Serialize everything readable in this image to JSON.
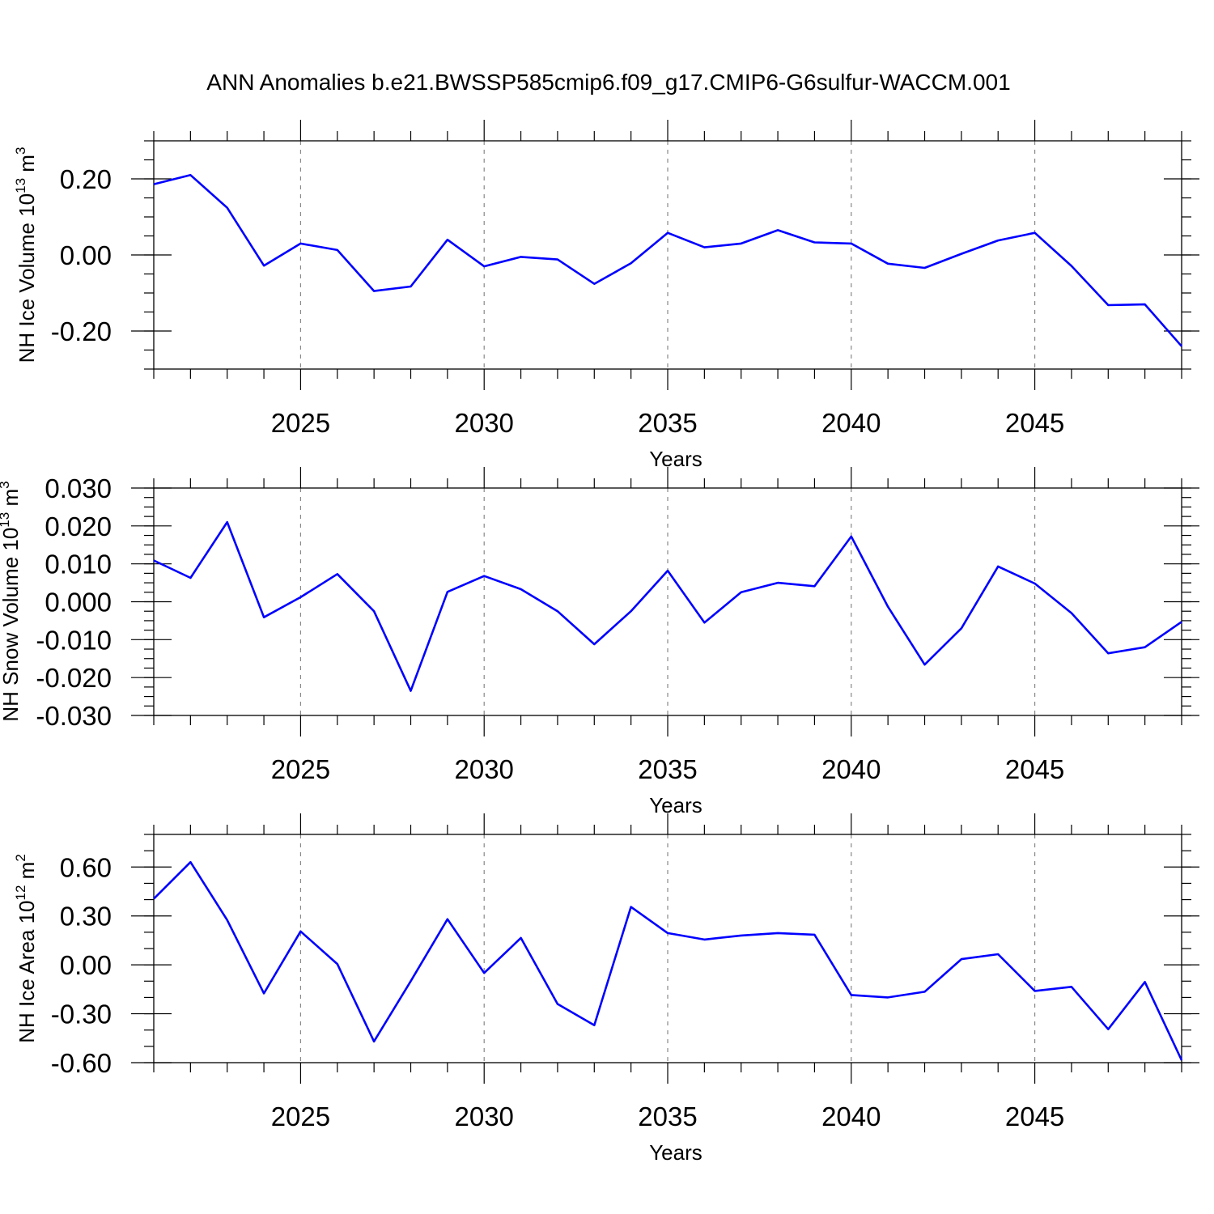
{
  "title": "ANN Anomalies b.e21.BWSSP585cmip6.f09_g17.CMIP6-G6sulfur-WACCM.001",
  "colors": {
    "line": "#0000ff",
    "grid": "#888888",
    "axes": "#000000"
  },
  "chart_data": [
    {
      "type": "line",
      "ylabel": {
        "base": "NH Ice Volume 10",
        "sup": "13",
        "unit": " m",
        "unit_sup": "3"
      },
      "xlabel": "Years",
      "xlim": [
        2021,
        2049
      ],
      "ylim": [
        -0.3,
        0.3
      ],
      "yticks": [
        -0.2,
        0.0,
        0.2
      ],
      "ytick_labels": [
        "-0.20",
        "0.00",
        "0.20"
      ],
      "yminor_step": 0.05,
      "xticks": [
        2025,
        2030,
        2035,
        2040,
        2045
      ],
      "xtick_labels": [
        "2025",
        "2030",
        "2035",
        "2040",
        "2045"
      ],
      "grid": "vertical dashed at major x ticks",
      "x": [
        2021,
        2022,
        2023,
        2024,
        2025,
        2026,
        2027,
        2028,
        2029,
        2030,
        2031,
        2032,
        2033,
        2034,
        2035,
        2036,
        2037,
        2038,
        2039,
        2040,
        2041,
        2042,
        2043,
        2044,
        2045,
        2046,
        2047,
        2048,
        2049
      ],
      "values": [
        0.186,
        0.21,
        0.124,
        -0.028,
        0.03,
        0.013,
        -0.095,
        -0.083,
        0.04,
        -0.03,
        -0.005,
        -0.012,
        -0.076,
        -0.022,
        0.058,
        0.02,
        0.03,
        0.065,
        0.033,
        0.03,
        -0.023,
        -0.034,
        0.003,
        0.038,
        0.058,
        -0.029,
        -0.132,
        -0.13,
        -0.24
      ]
    },
    {
      "type": "line",
      "ylabel": {
        "base": "NH Snow Volume 10",
        "sup": "13",
        "unit": " m",
        "unit_sup": "3"
      },
      "xlabel": "Years",
      "xlim": [
        2021,
        2049
      ],
      "ylim": [
        -0.03,
        0.03
      ],
      "yticks": [
        -0.03,
        -0.02,
        -0.01,
        0.0,
        0.01,
        0.02,
        0.03
      ],
      "ytick_labels": [
        "-0.030",
        "-0.020",
        "-0.010",
        "0.000",
        "0.010",
        "0.020",
        "0.030"
      ],
      "yminor_step": 0.0025,
      "xticks": [
        2025,
        2030,
        2035,
        2040,
        2045
      ],
      "xtick_labels": [
        "2025",
        "2030",
        "2035",
        "2040",
        "2045"
      ],
      "grid": "vertical dashed at major x ticks",
      "x": [
        2021,
        2022,
        2023,
        2024,
        2025,
        2026,
        2027,
        2028,
        2029,
        2030,
        2031,
        2032,
        2033,
        2034,
        2035,
        2036,
        2037,
        2038,
        2039,
        2040,
        2041,
        2042,
        2043,
        2044,
        2045,
        2046,
        2047,
        2048,
        2049
      ],
      "values": [
        0.0109,
        0.0063,
        0.021,
        -0.0041,
        0.0012,
        0.0073,
        -0.0025,
        -0.0235,
        0.0026,
        0.0068,
        0.0033,
        -0.0025,
        -0.0112,
        -0.0025,
        0.0082,
        -0.0055,
        0.0025,
        0.005,
        0.0041,
        0.0172,
        -0.0013,
        -0.0166,
        -0.007,
        0.0093,
        0.0048,
        -0.003,
        -0.0136,
        -0.012,
        -0.0053
      ]
    },
    {
      "type": "line",
      "ylabel": {
        "base": "NH Ice Area 10",
        "sup": "12",
        "unit": " m",
        "unit_sup": "2"
      },
      "xlabel": "Years",
      "xlim": [
        2021,
        2049
      ],
      "ylim": [
        -0.6,
        0.8
      ],
      "yticks": [
        -0.6,
        -0.3,
        0.0,
        0.3,
        0.6
      ],
      "ytick_labels": [
        "-0.60",
        "-0.30",
        "0.00",
        "0.30",
        "0.60"
      ],
      "yminor_step": 0.1,
      "xticks": [
        2025,
        2030,
        2035,
        2040,
        2045
      ],
      "xtick_labels": [
        "2025",
        "2030",
        "2035",
        "2040",
        "2045"
      ],
      "grid": "vertical dashed at major x ticks",
      "x": [
        2021,
        2022,
        2023,
        2024,
        2025,
        2026,
        2027,
        2028,
        2029,
        2030,
        2031,
        2032,
        2033,
        2034,
        2035,
        2036,
        2037,
        2038,
        2039,
        2040,
        2041,
        2042,
        2043,
        2044,
        2045,
        2046,
        2047,
        2048,
        2049
      ],
      "values": [
        0.405,
        0.63,
        0.275,
        -0.175,
        0.205,
        0.005,
        -0.47,
        -0.1,
        0.28,
        -0.05,
        0.165,
        -0.24,
        -0.37,
        0.355,
        0.195,
        0.155,
        0.18,
        0.195,
        0.185,
        -0.185,
        -0.2,
        -0.165,
        0.035,
        0.065,
        -0.16,
        -0.135,
        -0.395,
        -0.105,
        -0.585
      ]
    }
  ]
}
